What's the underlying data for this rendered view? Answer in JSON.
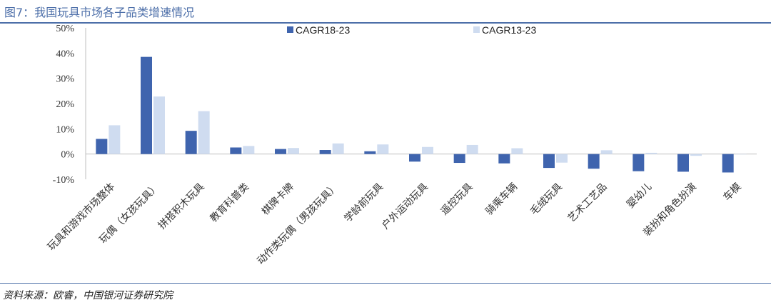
{
  "header": {
    "title": "图7：我国玩具市场各子品类增速情况"
  },
  "footer": {
    "source": "资料来源：欧睿，中国银河证券研究院"
  },
  "colors": {
    "series1": "#3f64ae",
    "series2": "#cfdcf0",
    "text": "#333333",
    "accent": "#4d6fa9"
  },
  "chart_data": {
    "type": "bar",
    "title": "",
    "xlabel": "",
    "ylabel": "",
    "ylim": [
      -0.1,
      0.5
    ],
    "yticks": [
      -0.1,
      0.0,
      0.1,
      0.2,
      0.3,
      0.4,
      0.5
    ],
    "ytick_labels": [
      "-10%",
      "0%",
      "10%",
      "20%",
      "30%",
      "40%",
      "50%"
    ],
    "legend_position": "top-center",
    "grid": false,
    "categories": [
      "玩具和游戏市场整体",
      "玩偶（女孩玩具）",
      "拼搭积木玩具",
      "教育科普类",
      "棋牌卡牌",
      "动作类玩偶（男孩玩具）",
      "学龄前玩具",
      "户外运动玩具",
      "遥控玩具",
      "骑乘车辆",
      "毛绒玩具",
      "艺术工艺品",
      "婴幼儿",
      "装扮和角色扮演",
      "车模"
    ],
    "series": [
      {
        "name": "CAGR18-23",
        "values": [
          0.06,
          0.385,
          0.092,
          0.026,
          0.02,
          0.016,
          0.011,
          -0.03,
          -0.035,
          -0.037,
          -0.055,
          -0.058,
          -0.068,
          -0.07,
          -0.073
        ]
      },
      {
        "name": "CAGR13-23",
        "values": [
          0.114,
          0.228,
          0.17,
          0.032,
          0.024,
          0.042,
          0.038,
          0.028,
          0.036,
          0.023,
          -0.034,
          0.015,
          0.005,
          -0.007,
          0.0
        ]
      }
    ]
  }
}
